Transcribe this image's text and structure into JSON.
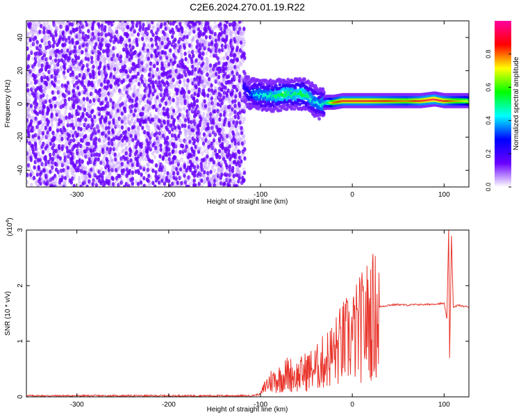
{
  "title": "C2E6.2024.270.01.19.R22",
  "chart_data": [
    {
      "type": "heatmap",
      "xlabel": "Height of straight line (km)",
      "ylabel": "Frequency (Hz)",
      "xlim": [
        -355,
        127
      ],
      "ylim": [
        -50,
        50
      ],
      "xticks": [
        -300,
        -200,
        -100,
        0,
        100
      ],
      "yticks": [
        -40,
        -20,
        0,
        20,
        40
      ],
      "colorbar": {
        "label": "Normalized spectral amplitude",
        "range": [
          0,
          1
        ],
        "ticks": [
          "0.0",
          "0.2",
          "0.4",
          "0.6",
          "0.8"
        ],
        "colors": [
          "#ffffff",
          "#6a00ff",
          "#0000ff",
          "#00ffff",
          "#00ff00",
          "#ffff00",
          "#ff0000",
          "#ff00a0"
        ]
      },
      "noise_region": {
        "x_range": [
          -355,
          -117
        ],
        "level": 0.1,
        "color": "#6a00ff"
      },
      "ridge": [
        {
          "x": -118,
          "f": 10,
          "amp": 0.25
        },
        {
          "x": -112,
          "f": 6,
          "amp": 0.3
        },
        {
          "x": -105,
          "f": 6,
          "amp": 0.45
        },
        {
          "x": -95,
          "f": 5,
          "amp": 0.45
        },
        {
          "x": -85,
          "f": 5,
          "amp": 0.5
        },
        {
          "x": -75,
          "f": 6,
          "amp": 0.55
        },
        {
          "x": -65,
          "f": 6,
          "amp": 0.5
        },
        {
          "x": -55,
          "f": 6,
          "amp": 0.55
        },
        {
          "x": -48,
          "f": 5,
          "amp": 0.5
        },
        {
          "x": -42,
          "f": 2,
          "amp": 0.45
        },
        {
          "x": -35,
          "f": 0,
          "amp": 0.45
        },
        {
          "x": -28,
          "f": 1,
          "amp": 0.5
        },
        {
          "x": -20,
          "f": 1,
          "amp": 0.8
        },
        {
          "x": -10,
          "f": 2,
          "amp": 0.9
        },
        {
          "x": 0,
          "f": 2,
          "amp": 0.9
        },
        {
          "x": 20,
          "f": 2,
          "amp": 0.9
        },
        {
          "x": 40,
          "f": 2,
          "amp": 0.85
        },
        {
          "x": 60,
          "f": 2,
          "amp": 0.8
        },
        {
          "x": 75,
          "f": 2,
          "amp": 0.9
        },
        {
          "x": 90,
          "f": 3,
          "amp": 0.95
        },
        {
          "x": 100,
          "f": 2,
          "amp": 0.9
        },
        {
          "x": 110,
          "f": 2,
          "amp": 0.8
        },
        {
          "x": 127,
          "f": 2,
          "amp": 0.7
        }
      ]
    },
    {
      "type": "line",
      "xlabel": "Height of straight line (km)",
      "ylabel": "SNR (10 * v/v)",
      "y_multiplier_label": "(x10",
      "y_multiplier_exponent": "4",
      "y_multiplier_close": ")",
      "xlim": [
        -355,
        127
      ],
      "ylim": [
        0,
        3
      ],
      "xticks": [
        -300,
        -200,
        -100,
        0,
        100
      ],
      "yticks": [
        0,
        1,
        2,
        3
      ],
      "series": [
        {
          "color": "#e8332a",
          "x": [
            -355,
            -300,
            -200,
            -110,
            -100,
            -95,
            -90,
            -80,
            -70,
            -60,
            -50,
            -40,
            -30,
            -20,
            -15,
            -10,
            -5,
            0,
            5,
            10,
            15,
            20,
            30,
            40,
            50,
            60,
            70,
            80,
            90,
            100,
            103,
            105,
            106,
            108,
            110,
            115,
            120,
            127
          ],
          "y": [
            0.02,
            0.02,
            0.02,
            0.02,
            0.05,
            0.2,
            0.3,
            0.35,
            0.45,
            0.4,
            0.5,
            0.55,
            0.7,
            0.85,
            0.95,
            1.05,
            1.1,
            1.15,
            1.25,
            1.35,
            1.45,
            1.55,
            1.62,
            1.65,
            1.66,
            1.65,
            1.66,
            1.66,
            1.67,
            1.68,
            1.4,
            3.0,
            0.7,
            2.9,
            1.6,
            1.65,
            1.63,
            1.62
          ]
        }
      ]
    }
  ]
}
